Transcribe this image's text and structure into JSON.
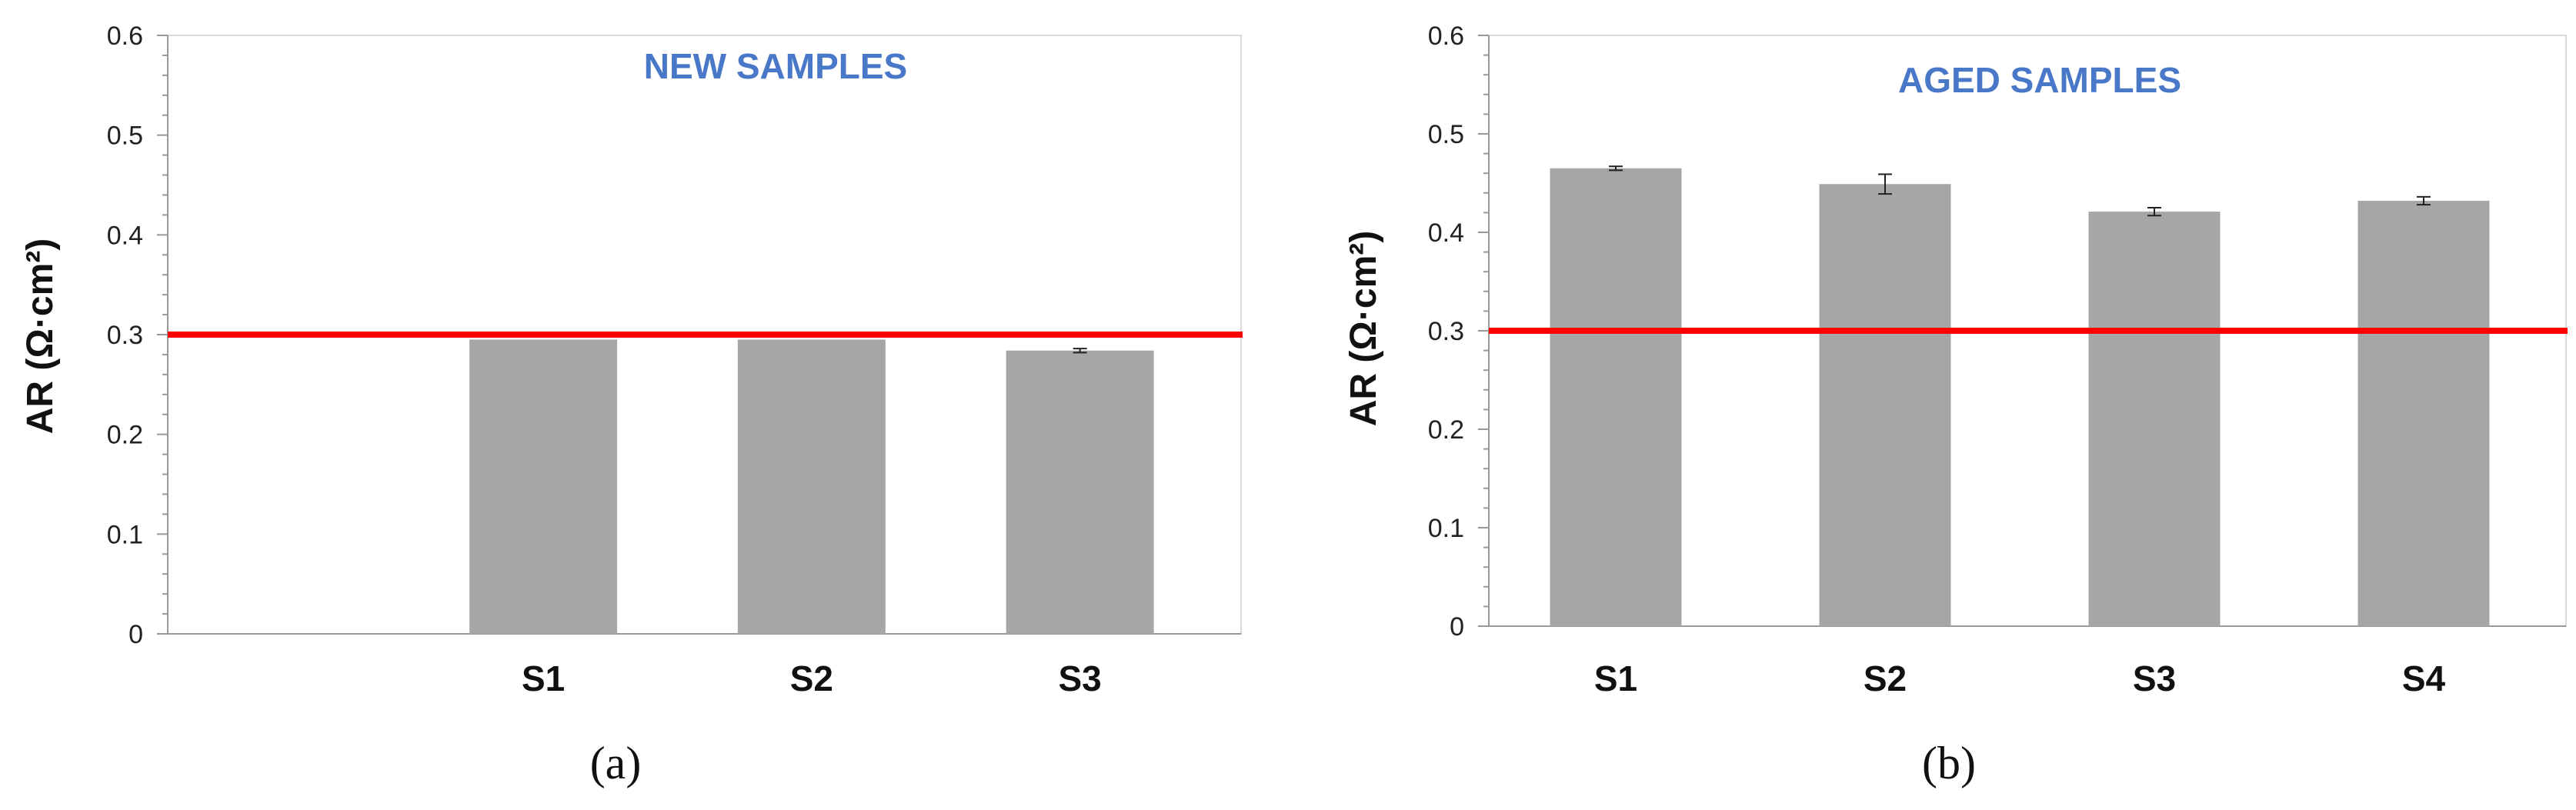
{
  "colors": {
    "bar": "#a6a6a6",
    "threshold_line": "#ff0000",
    "title": "#4a78c8",
    "axis": "#999999",
    "error_bar": "#222222"
  },
  "chart_data": [
    {
      "type": "bar",
      "panel_label": "(a)",
      "title": "NEW SAMPLES",
      "ylabel": "AR (Ω·cm²)",
      "xlabel": "",
      "categories": [
        "S1",
        "S2",
        "S3"
      ],
      "values": [
        0.295,
        0.295,
        0.284
      ],
      "errors": [
        0,
        0,
        0.002
      ],
      "ylim": [
        0,
        0.6
      ],
      "yticks": [
        "0",
        "0.1",
        "0.2",
        "0.3",
        "0.4",
        "0.5",
        "0.6"
      ],
      "threshold": 0.3,
      "grid": false,
      "legend": "none"
    },
    {
      "type": "bar",
      "panel_label": "(b)",
      "title": "AGED SAMPLES",
      "ylabel": "AR (Ω·cm²)",
      "xlabel": "",
      "categories": [
        "S1",
        "S2",
        "S3",
        "S4"
      ],
      "values": [
        0.465,
        0.449,
        0.421,
        0.432
      ],
      "errors": [
        0.002,
        0.01,
        0.004,
        0.004
      ],
      "ylim": [
        0,
        0.6
      ],
      "yticks": [
        "0",
        "0.1",
        "0.2",
        "0.3",
        "0.4",
        "0.5",
        "0.6"
      ],
      "threshold": 0.3,
      "grid": false,
      "legend": "none"
    }
  ]
}
